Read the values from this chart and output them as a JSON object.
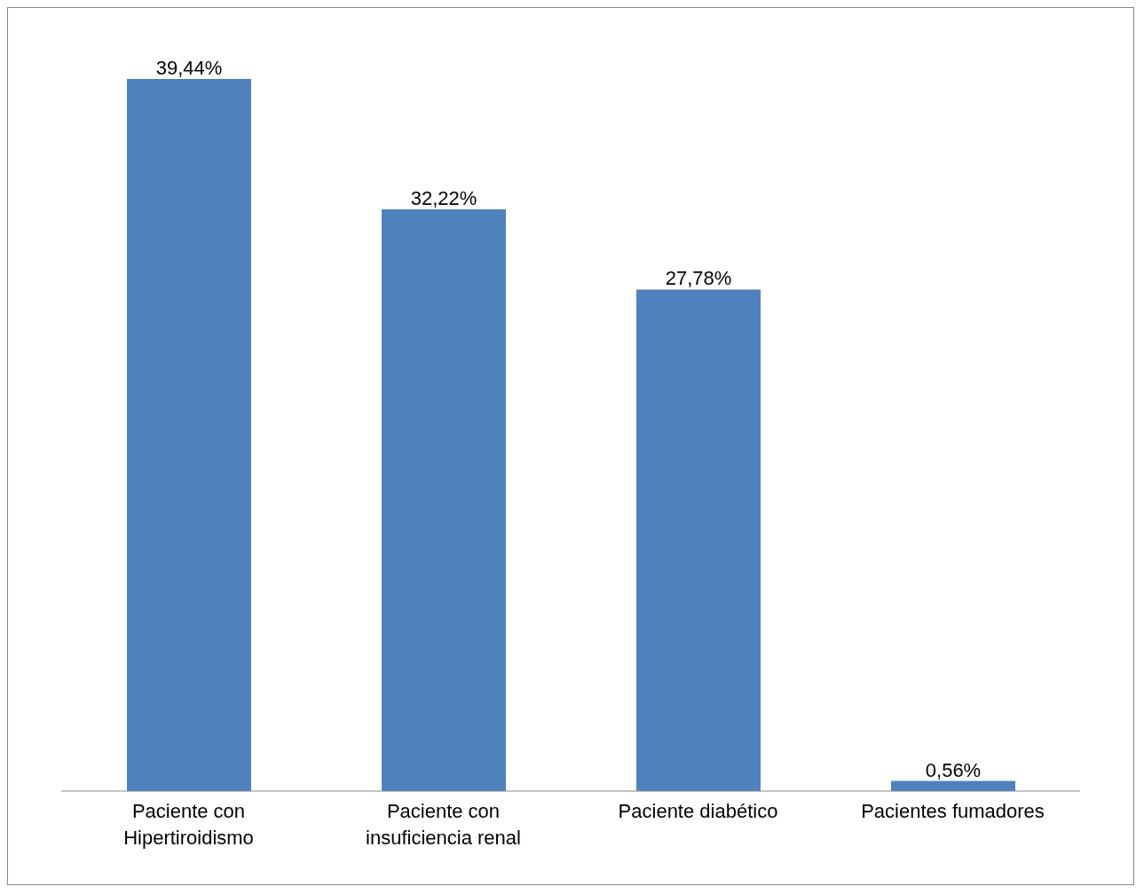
{
  "chart_data": {
    "type": "bar",
    "categories": [
      "Paciente con Hipertiroidismo",
      "Paciente con insuficiencia renal",
      "Paciente diabético",
      "Pacientes fumadores"
    ],
    "values": [
      39.44,
      32.22,
      27.78,
      0.56
    ],
    "value_labels": [
      "39,44%",
      "32,22%",
      "27,78%",
      "0,56%"
    ],
    "color": "#4f81bd"
  }
}
